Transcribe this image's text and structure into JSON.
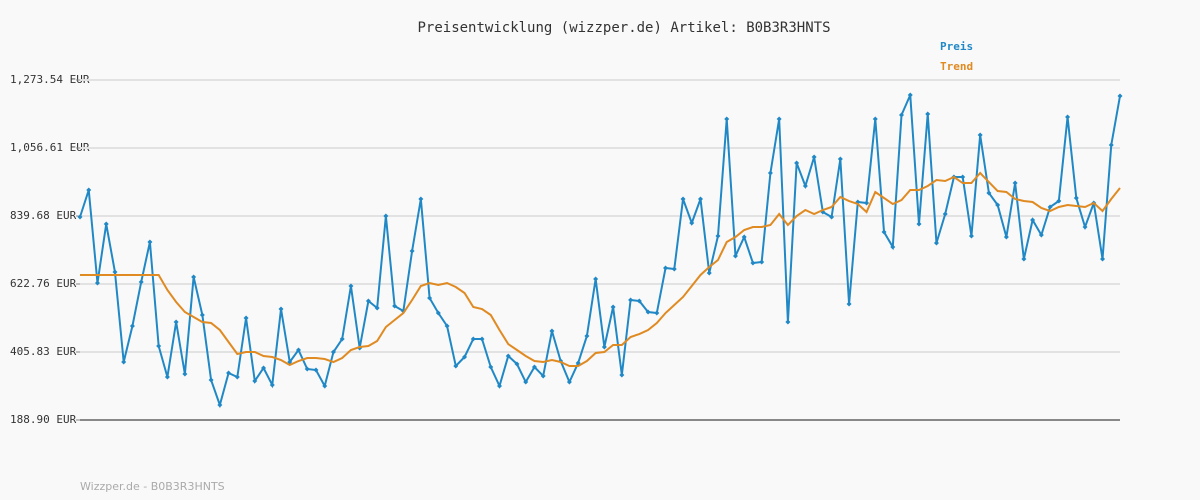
{
  "chart_data": {
    "type": "line",
    "title": "Preisentwicklung (wizzper.de) Artikel: B0B3R3HNTS",
    "footer": "Wizzper.de - B0B3R3HNTS",
    "ylim": [
      188.9,
      1273.54
    ],
    "yticks": [
      {
        "value": 188.9,
        "label": "188.90 EUR"
      },
      {
        "value": 405.83,
        "label": "405.83 EUR"
      },
      {
        "value": 622.76,
        "label": "622.76 EUR"
      },
      {
        "value": 839.68,
        "label": "839.68 EUR"
      },
      {
        "value": 1056.61,
        "label": "1,056.61 EUR"
      },
      {
        "value": 1273.54,
        "label": "1,273.54 EUR"
      }
    ],
    "grid": true,
    "legend": "top-right",
    "series": [
      {
        "name": "Preis",
        "color": "#2188c6",
        "markers": true,
        "values": [
          836.5,
          922.6,
          625.9,
          814.1,
          661.0,
          373.9,
          488.8,
          629.1,
          756.7,
          425.0,
          326.1,
          501.5,
          335.6,
          645.1,
          523.9,
          316.5,
          236.8,
          338.8,
          326.1,
          514.3,
          313.3,
          354.8,
          300.6,
          543.0,
          373.9,
          412.2,
          351.6,
          348.4,
          297.4,
          405.8,
          447.3,
          616.4,
          418.6,
          568.5,
          546.2,
          839.7,
          552.6,
          536.6,
          728.0,
          893.9,
          578.1,
          530.2,
          488.8,
          361.2,
          389.9,
          447.3,
          447.3,
          358.0,
          297.4,
          393.1,
          367.5,
          310.1,
          358.0,
          329.3,
          472.8,
          377.1,
          310.1,
          370.7,
          456.9,
          638.7,
          421.8,
          549.4,
          332.5,
          571.7,
          568.5,
          533.4,
          530.2,
          673.8,
          670.6,
          893.9,
          817.3,
          893.9,
          657.8,
          775.9,
          1149.1,
          712.1,
          772.7,
          689.7,
          692.9,
          976.8,
          1149.1,
          501.5,
          1008.7,
          935.4,
          1027.9,
          852.4,
          836.5,
          1021.5,
          558.9,
          884.3,
          881.1,
          1149.1,
          788.6,
          740.8,
          1161.9,
          1225.7,
          814.1,
          1165.0,
          753.5,
          846.0,
          964.1,
          964.1,
          775.9,
          1098.1,
          913.0,
          874.8,
          772.7,
          944.9,
          702.5,
          826.9,
          779.1,
          868.4,
          887.5,
          1155.5,
          897.1,
          804.6,
          881.1,
          702.5,
          1066.2,
          1222.5
        ]
      },
      {
        "name": "Trend",
        "color": "#e08a22",
        "markers": false,
        "values": [
          651.5,
          651.5,
          651.5,
          651.5,
          651.5,
          651.5,
          651.5,
          651.5,
          651.5,
          651.5,
          603.6,
          565.3,
          533.4,
          517.5,
          501.5,
          498.3,
          476.0,
          437.7,
          399.4,
          405.8,
          405.8,
          393.1,
          389.9,
          380.3,
          364.4,
          377.1,
          386.7,
          386.7,
          383.5,
          373.9,
          386.7,
          412.2,
          421.8,
          425.0,
          440.9,
          485.6,
          507.9,
          530.2,
          571.7,
          616.4,
          625.9,
          619.5,
          625.9,
          613.2,
          594.0,
          549.4,
          543.0,
          523.9,
          476.0,
          431.3,
          412.2,
          393.1,
          377.1,
          373.9,
          380.3,
          373.9,
          361.2,
          361.2,
          377.1,
          402.6,
          405.8,
          428.2,
          428.2,
          453.7,
          463.2,
          476.0,
          498.3,
          530.2,
          555.8,
          581.3,
          616.4,
          651.5,
          677.0,
          699.3,
          756.7,
          772.7,
          795.0,
          804.6,
          804.6,
          810.9,
          846.0,
          810.9,
          839.7,
          858.8,
          846.0,
          858.8,
          868.4,
          900.3,
          887.5,
          878.0,
          852.4,
          916.2,
          897.1,
          878.0,
          890.7,
          922.6,
          922.6,
          935.4,
          954.5,
          951.3,
          964.1,
          944.9,
          944.9,
          976.8,
          948.1,
          919.4,
          916.2,
          893.9,
          887.5,
          884.3,
          865.2,
          855.6,
          868.4,
          874.8,
          871.6,
          868.4,
          881.1,
          855.6,
          893.9,
          929.0
        ]
      }
    ]
  }
}
